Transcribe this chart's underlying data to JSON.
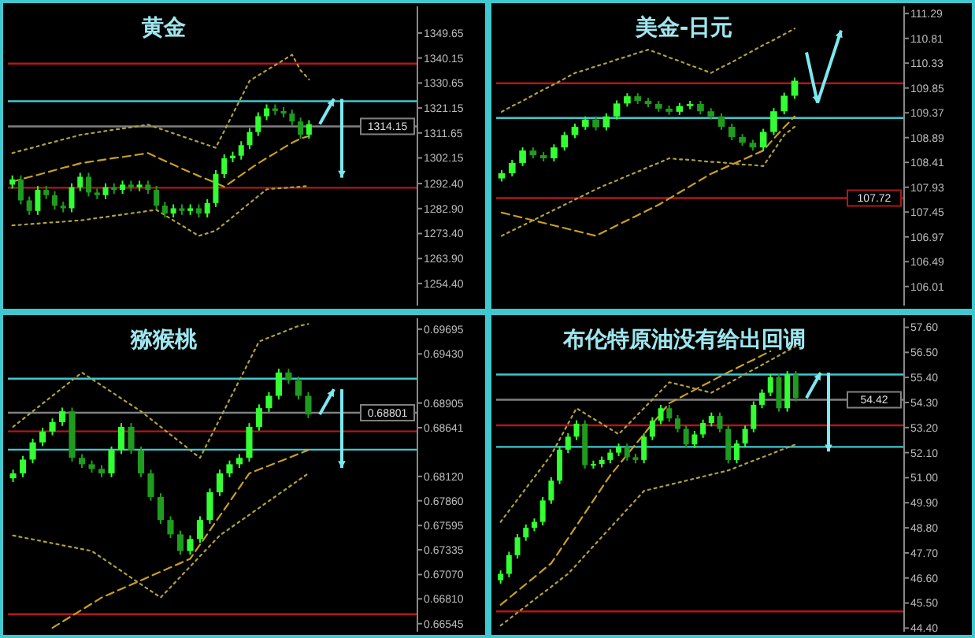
{
  "chart_data": [
    {
      "type": "candlestick",
      "title": "黄金",
      "colors": [
        "#33ff33",
        "#1f9b1f",
        "#1f9b1f",
        "#33ff33",
        "#1f9b1f",
        "#1f9b1f",
        "#1f9b1f",
        "#33ff33",
        "#33ff33",
        "#1f9b1f",
        "#1f9b1f",
        "#33ff33",
        "#1f9b1f",
        "#33ff33",
        "#1f9b1f",
        "#33ff33",
        "#1f9b1f",
        "#1f9b1f",
        "#1f9b1f",
        "#33ff33",
        "#1f9b1f",
        "#33ff33",
        "#1f9b1f",
        "#33ff33",
        "#33ff33",
        "#33ff33",
        "#33ff33",
        "#33ff33",
        "#33ff33",
        "#33ff33",
        "#33ff33",
        "#1f9b1f",
        "#1f9b1f",
        "#1f9b1f",
        "#1f9b1f",
        "#33ff33"
      ],
      "tick_labels": "y",
      "ylim": [
        1246,
        1359.8
      ],
      "yticks": [
        1349.65,
        1340.15,
        1330.65,
        1321.15,
        1311.65,
        1302.15,
        {
          "value": 1292.4,
          "label": "1292.40"
        },
        {
          "value": 1282.9,
          "label": "1282.90"
        },
        {
          "value": 1273.4,
          "label": "1273.40"
        },
        {
          "value": 1263.9,
          "label": "1263.90"
        },
        {
          "value": 1254.4,
          "label": "1254.40"
        }
      ],
      "categories": [
        null,
        null,
        null,
        null,
        null,
        null,
        null,
        null,
        null,
        null,
        null,
        null,
        null,
        null,
        null,
        null,
        null,
        null,
        null,
        null,
        null,
        null,
        null,
        null,
        null,
        null,
        null,
        null,
        null,
        null,
        null,
        null,
        null,
        null,
        null,
        null
      ],
      "ohlc": [
        [
          1292,
          1295.5,
          1290.5,
          1294
        ],
        [
          1294,
          1295.5,
          1284.5,
          1286
        ],
        [
          1286,
          1287.5,
          1280.5,
          1282
        ],
        [
          1282,
          1291.5,
          1280.5,
          1290
        ],
        [
          1290,
          1291.5,
          1286.5,
          1288
        ],
        [
          1288,
          1289.5,
          1282.5,
          1284
        ],
        [
          1284,
          1285.5,
          1281.5,
          1283
        ],
        [
          1283,
          1292.5,
          1281.5,
          1291
        ],
        [
          1291,
          1296.5,
          1289.5,
          1295
        ],
        [
          1295,
          1296.5,
          1287.5,
          1289
        ],
        [
          1289,
          1290.5,
          1286.5,
          1288
        ],
        [
          1288,
          1292.5,
          1286.5,
          1291
        ],
        [
          1291,
          1292.5,
          1288.5,
          1290
        ],
        [
          1290,
          1293.5,
          1288.5,
          1292
        ],
        [
          1292,
          1293.5,
          1289.5,
          1291
        ],
        [
          1291,
          1293.5,
          1289.5,
          1292
        ],
        [
          1292,
          1293.5,
          1288.5,
          1290
        ],
        [
          1290,
          1291.5,
          1282.5,
          1284
        ],
        [
          1284,
          1285.5,
          1279.5,
          1281
        ],
        [
          1281,
          1284.5,
          1279.5,
          1283
        ],
        [
          1283,
          1284.5,
          1280.5,
          1282
        ],
        [
          1282,
          1284.5,
          1280.5,
          1283
        ],
        [
          1283,
          1284.5,
          1279.5,
          1281
        ],
        [
          1281,
          1286.5,
          1279.5,
          1285
        ],
        [
          1285,
          1297.5,
          1283.5,
          1296
        ],
        [
          1296,
          1303.5,
          1294.5,
          1302
        ],
        [
          1302,
          1304.5,
          1300.5,
          1303
        ],
        [
          1303,
          1308.5,
          1301.5,
          1307
        ],
        [
          1307,
          1313.5,
          1305.5,
          1312
        ],
        [
          1312,
          1319.5,
          1310.5,
          1318
        ],
        [
          1318,
          1322.5,
          1316.5,
          1321
        ],
        [
          1321,
          1322.5,
          1318.5,
          1320
        ],
        [
          1320,
          1321.5,
          1317.5,
          1319
        ],
        [
          1319,
          1320.5,
          1314.5,
          1316
        ],
        [
          1316,
          1317.5,
          1309.5,
          1311
        ],
        [
          1311,
          1316.5,
          1309.5,
          1315
        ]
      ],
      "series": [
        {
          "type": "line",
          "color": "#c8a020",
          "line_style": "dashed",
          "values": [
            1293.1,
            1294.0,
            1294.9,
            1295.7,
            1296.6,
            1297.5,
            1298.4,
            1299.2,
            1300.1,
            1300.6,
            1301.1,
            1301.6,
            1302.1,
            1302.5,
            1303.0,
            1303.5,
            1304.0,
            1302.5,
            1301.0,
            1299.6,
            1298.1,
            1296.7,
            1295.3,
            1294.0,
            1292.6,
            1291.2,
            1293.4,
            1295.7,
            1297.9,
            1300.1,
            1302.1,
            1304.0,
            1306.0,
            1307.9,
            1309.5,
            1310.5
          ]
        },
        {
          "type": "line",
          "color": "#b0a040",
          "line_style": "dotted",
          "values": [
            1304.0,
            1304.9,
            1305.7,
            1306.6,
            1307.5,
            1308.3,
            1309.2,
            1310.0,
            1310.9,
            1311.4,
            1311.9,
            1312.4,
            1312.9,
            1313.3,
            1313.8,
            1314.3,
            1314.8,
            1313.7,
            1312.6,
            1311.5,
            1310.4,
            1309.3,
            1308.2,
            1307.1,
            1306.0,
            1312.4,
            1318.8,
            1325.1,
            1331.5,
            1333.5,
            1335.5,
            1337.4,
            1339.4,
            1341.4,
            1335.5,
            1332.0
          ]
        },
        {
          "type": "line",
          "color": "#b0a040",
          "line_style": "dotted",
          "values": [
            1276.5,
            1276.7,
            1277.0,
            1277.2,
            1277.5,
            1277.7,
            1277.9,
            1278.2,
            1278.4,
            1278.8,
            1279.3,
            1279.7,
            1280.2,
            1280.6,
            1281.1,
            1281.5,
            1282.0,
            1282.4,
            1280.4,
            1278.4,
            1276.5,
            1274.5,
            1272.5,
            1273.5,
            1274.5,
            1277.1,
            1279.7,
            1282.4,
            1285.0,
            1287.6,
            1290.2,
            1290.5,
            1290.7,
            1291.0,
            1291.2,
            1291.5
          ]
        }
      ],
      "ref_lines": [
        {
          "axis": "y",
          "value": 1338.0,
          "color": "#b01818"
        },
        {
          "axis": "y",
          "value": 1323.7,
          "color": "#40c8d0"
        },
        {
          "axis": "y",
          "value": 1314.15,
          "color": "#808080",
          "label": "1314.15"
        },
        {
          "axis": "y",
          "value": 1290.8,
          "color": "#b01818"
        }
      ]
    },
    {
      "type": "candlestick",
      "title": "美金-日元",
      "colors": [
        "#33ff33",
        "#33ff33",
        "#33ff33",
        "#1f9b1f",
        "#1f9b1f",
        "#33ff33",
        "#33ff33",
        "#33ff33",
        "#33ff33",
        "#1f9b1f",
        "#33ff33",
        "#33ff33",
        "#33ff33",
        "#1f9b1f",
        "#1f9b1f",
        "#1f9b1f",
        "#1f9b1f",
        "#33ff33",
        "#33ff33",
        "#1f9b1f",
        "#1f9b1f",
        "#1f9b1f",
        "#1f9b1f",
        "#1f9b1f",
        "#1f9b1f",
        "#33ff33",
        "#33ff33",
        "#33ff33",
        "#33ff33"
      ],
      "tick_labels": "y",
      "ylim": [
        105.64,
        111.43
      ],
      "yticks": [
        111.29,
        110.81,
        110.33,
        109.85,
        109.37,
        108.89,
        108.41,
        107.93,
        107.45,
        106.97,
        106.49,
        106.01
      ],
      "categories": [
        null,
        null,
        null,
        null,
        null,
        null,
        null,
        null,
        null,
        null,
        null,
        null,
        null,
        null,
        null,
        null,
        null,
        null,
        null,
        null,
        null,
        null,
        null,
        null,
        null,
        null,
        null,
        null,
        null
      ],
      "ohlc": [
        [
          108.1,
          108.26,
          108.04,
          108.2
        ],
        [
          108.2,
          108.46,
          108.14,
          108.4
        ],
        [
          108.4,
          108.7,
          108.34,
          108.64
        ],
        [
          108.64,
          108.7,
          108.49,
          108.55
        ],
        [
          108.55,
          108.61,
          108.43,
          108.49
        ],
        [
          108.49,
          108.76,
          108.43,
          108.7
        ],
        [
          108.7,
          109.0,
          108.64,
          108.94
        ],
        [
          108.94,
          109.16,
          108.88,
          109.1
        ],
        [
          109.1,
          109.3,
          109.04,
          109.24
        ],
        [
          109.24,
          109.3,
          109.03,
          109.09
        ],
        [
          109.09,
          109.36,
          109.03,
          109.3
        ],
        [
          109.3,
          109.61,
          109.24,
          109.55
        ],
        [
          109.55,
          109.75,
          109.49,
          109.69
        ],
        [
          109.69,
          109.75,
          109.54,
          109.6
        ],
        [
          109.6,
          109.66,
          109.48,
          109.54
        ],
        [
          109.54,
          109.6,
          109.39,
          109.45
        ],
        [
          109.45,
          109.51,
          109.33,
          109.39
        ],
        [
          109.39,
          109.56,
          109.33,
          109.5
        ],
        [
          109.5,
          109.6,
          109.44,
          109.54
        ],
        [
          109.54,
          109.6,
          109.34,
          109.4
        ],
        [
          109.4,
          109.46,
          109.24,
          109.3
        ],
        [
          109.3,
          109.36,
          109.04,
          109.1
        ],
        [
          109.1,
          109.16,
          108.84,
          108.9
        ],
        [
          108.9,
          108.96,
          108.73,
          108.79
        ],
        [
          108.79,
          108.85,
          108.64,
          108.7
        ],
        [
          108.7,
          109.06,
          108.64,
          109.0
        ],
        [
          109.0,
          109.46,
          108.94,
          109.4
        ],
        [
          109.4,
          109.76,
          109.34,
          109.7
        ],
        [
          109.7,
          110.05,
          109.64,
          109.99
        ]
      ],
      "series": [
        {
          "type": "line",
          "color": "#c8a020",
          "line_style": "dashed",
          "values": [
            107.44,
            107.39,
            107.34,
            107.29,
            107.24,
            107.19,
            107.14,
            107.09,
            107.04,
            106.99,
            107.09,
            107.19,
            107.29,
            107.39,
            107.49,
            107.59,
            107.71,
            107.83,
            107.95,
            108.07,
            108.19,
            108.28,
            108.37,
            108.46,
            108.55,
            108.64,
            108.87,
            109.09,
            109.3
          ]
        },
        {
          "type": "line",
          "color": "#b0a040",
          "line_style": "dotted",
          "values": [
            109.39,
            109.5,
            109.6,
            109.71,
            109.82,
            109.92,
            110.03,
            110.14,
            110.2,
            110.27,
            110.33,
            110.4,
            110.46,
            110.53,
            110.59,
            110.52,
            110.44,
            110.37,
            110.29,
            110.22,
            110.14,
            110.25,
            110.35,
            110.46,
            110.57,
            110.68,
            110.78,
            110.89,
            111.0
          ]
        },
        {
          "type": "line",
          "color": "#b0a040",
          "line_style": "dotted",
          "values": [
            106.99,
            107.09,
            107.19,
            107.29,
            107.39,
            107.49,
            107.59,
            107.69,
            107.79,
            107.89,
            107.98,
            108.06,
            108.15,
            108.23,
            108.32,
            108.4,
            108.49,
            108.47,
            108.46,
            108.44,
            108.42,
            108.41,
            108.39,
            108.37,
            108.36,
            108.34,
            108.64,
            108.94,
            109.1
          ]
        }
      ],
      "ref_lines": [
        {
          "axis": "y",
          "value": 109.94,
          "color": "#b01818"
        },
        {
          "axis": "y",
          "value": 109.27,
          "color": "#40c8d0"
        },
        {
          "axis": "y",
          "value": 107.72,
          "color": "#b01818",
          "label": "107.72"
        }
      ]
    },
    {
      "type": "candlestick",
      "title": "猕猴桃",
      "colors": [
        "#33ff33",
        "#33ff33",
        "#33ff33",
        "#33ff33",
        "#33ff33",
        "#33ff33",
        "#1f9b1f",
        "#1f9b1f",
        "#1f9b1f",
        "#1f9b1f",
        "#33ff33",
        "#33ff33",
        "#1f9b1f",
        "#1f9b1f",
        "#1f9b1f",
        "#1f9b1f",
        "#1f9b1f",
        "#1f9b1f",
        "#33ff33",
        "#33ff33",
        "#33ff33",
        "#33ff33",
        "#33ff33",
        "#33ff33",
        "#33ff33",
        "#33ff33",
        "#33ff33",
        "#33ff33",
        "#1f9b1f",
        "#1f9b1f",
        "#1f9b1f"
      ],
      "tick_labels": "y",
      "ylim": [
        0.66459,
        0.69812
      ],
      "yticks": [
        0.69695,
        {
          "value": 0.6943,
          "label": "0.69430"
        },
        0.68905,
        0.68641,
        {
          "value": 0.6812,
          "label": "0.68120"
        },
        {
          "value": 0.6786,
          "label": "0.67860"
        },
        0.67595,
        0.67335,
        {
          "value": 0.6707,
          "label": "0.67070"
        },
        {
          "value": 0.6681,
          "label": "0.66810"
        },
        0.66545
      ],
      "categories": [
        null,
        null,
        null,
        null,
        null,
        null,
        null,
        null,
        null,
        null,
        null,
        null,
        null,
        null,
        null,
        null,
        null,
        null,
        null,
        null,
        null,
        null,
        null,
        null,
        null,
        null,
        null,
        null,
        null,
        null,
        null
      ],
      "ohlc": [
        [
          0.681,
          0.68192,
          0.6806,
          0.68152
        ],
        [
          0.68152,
          0.6834,
          0.68112,
          0.683
        ],
        [
          0.683,
          0.68524,
          0.6826,
          0.68484
        ],
        [
          0.68484,
          0.6864,
          0.68444,
          0.686
        ],
        [
          0.686,
          0.6874,
          0.6856,
          0.687
        ],
        [
          0.687,
          0.68856,
          0.6866,
          0.68816
        ],
        [
          0.68816,
          0.68856,
          0.68278,
          0.68318
        ],
        [
          0.68318,
          0.68358,
          0.6821,
          0.6825
        ],
        [
          0.6825,
          0.6829,
          0.6816,
          0.682
        ],
        [
          0.682,
          0.6824,
          0.68112,
          0.68152
        ],
        [
          0.68152,
          0.6844,
          0.68112,
          0.684
        ],
        [
          0.684,
          0.6869,
          0.6836,
          0.6865
        ],
        [
          0.6865,
          0.6869,
          0.6836,
          0.684
        ],
        [
          0.684,
          0.6844,
          0.68112,
          0.68152
        ],
        [
          0.68152,
          0.68192,
          0.6786,
          0.679
        ],
        [
          0.679,
          0.6794,
          0.67614,
          0.67654
        ],
        [
          0.67654,
          0.67694,
          0.6746,
          0.675
        ],
        [
          0.675,
          0.6754,
          0.67282,
          0.67322
        ],
        [
          0.67322,
          0.6749,
          0.67282,
          0.6745
        ],
        [
          0.6745,
          0.67694,
          0.6741,
          0.67654
        ],
        [
          0.67654,
          0.6799,
          0.67614,
          0.6795
        ],
        [
          0.6795,
          0.68192,
          0.6791,
          0.68152
        ],
        [
          0.68152,
          0.6829,
          0.68112,
          0.6825
        ],
        [
          0.6825,
          0.68358,
          0.6821,
          0.68318
        ],
        [
          0.68318,
          0.6869,
          0.68278,
          0.6865
        ],
        [
          0.6865,
          0.6889,
          0.6861,
          0.6885
        ],
        [
          0.6885,
          0.69022,
          0.6881,
          0.68982
        ],
        [
          0.68982,
          0.69271,
          0.68942,
          0.69231
        ],
        [
          0.69231,
          0.69271,
          0.69108,
          0.69148
        ],
        [
          0.69148,
          0.69188,
          0.68942,
          0.68982
        ],
        [
          0.68982,
          0.69022,
          0.68743,
          0.68783
        ]
      ],
      "series": [
        {
          "type": "line",
          "color": "#c8a020",
          "line_style": "dashed",
          "values": [
            null,
            null,
            null,
            null,
            0.665,
            0.66565,
            0.6663,
            0.66694,
            0.66759,
            0.66824,
            0.6687,
            0.66916,
            0.66962,
            0.67008,
            0.67055,
            0.67101,
            0.67147,
            0.67193,
            0.67239,
            0.67391,
            0.67543,
            0.67696,
            0.67848,
            0.68,
            0.68152,
            0.68194,
            0.68235,
            0.68277,
            0.68318,
            0.6836,
            0.68401
          ]
        },
        {
          "type": "line",
          "color": "#b0a040",
          "line_style": "dotted",
          "values": [
            0.6865,
            0.68733,
            0.68816,
            0.68899,
            0.68982,
            0.69065,
            0.69148,
            0.69231,
            0.69162,
            0.69093,
            0.69024,
            0.68954,
            0.68885,
            0.68816,
            0.68733,
            0.6865,
            0.68567,
            0.68484,
            0.68401,
            0.68318,
            0.68526,
            0.68733,
            0.68941,
            0.69148,
            0.69356,
            0.69563,
            0.69605,
            0.69646,
            0.69688,
            0.69729,
            0.6975
          ]
        },
        {
          "type": "line",
          "color": "#b0a040",
          "line_style": "dotted",
          "values": [
            0.67488,
            0.67467,
            0.67447,
            0.67426,
            0.67405,
            0.67384,
            0.67364,
            0.67343,
            0.67322,
            0.67251,
            0.6718,
            0.67109,
            0.67037,
            0.66966,
            0.66895,
            0.66824,
            0.66935,
            0.67046,
            0.67156,
            0.67267,
            0.67378,
            0.67488,
            0.67562,
            0.67636,
            0.67709,
            0.67783,
            0.67857,
            0.67931,
            0.68005,
            0.68078,
            0.68152
          ]
        }
      ],
      "ref_lines": [
        {
          "axis": "y",
          "value": 0.69165,
          "color": "#40c8d0"
        },
        {
          "axis": "y",
          "value": 0.68801,
          "color": "#808080",
          "label": "0.68801"
        },
        {
          "axis": "y",
          "value": 0.68602,
          "color": "#b01818"
        },
        {
          "axis": "y",
          "value": 0.68406,
          "color": "#40c8d0"
        },
        {
          "axis": "y",
          "value": 0.66647,
          "color": "#b01818"
        }
      ]
    },
    {
      "type": "candlestick",
      "title": "布伦特原油没有给出回调",
      "colors": [
        "#33ff33",
        "#33ff33",
        "#33ff33",
        "#33ff33",
        "#33ff33",
        "#33ff33",
        "#33ff33",
        "#33ff33",
        "#33ff33",
        "#33ff33",
        "#1f9b1f",
        "#33ff33",
        "#33ff33",
        "#33ff33",
        "#33ff33",
        "#1f9b1f",
        "#1f9b1f",
        "#33ff33",
        "#33ff33",
        "#33ff33",
        "#1f9b1f",
        "#1f9b1f",
        "#1f9b1f",
        "#33ff33",
        "#33ff33",
        "#33ff33",
        "#1f9b1f",
        "#1f9b1f",
        "#33ff33",
        "#33ff33",
        "#33ff33",
        "#33ff33",
        "#33ff33",
        "#1f9b1f",
        "#33ff33",
        "#1f9b1f"
      ],
      "tick_labels": "y",
      "ylim": [
        44.24,
        58.0
      ],
      "yticks": [
        {
          "value": 57.6,
          "label": "57.60"
        },
        {
          "value": 56.5,
          "label": "56.50"
        },
        {
          "value": 55.4,
          "label": "55.40"
        },
        {
          "value": 54.3,
          "label": "54.30"
        },
        {
          "value": 53.2,
          "label": "53.20"
        },
        {
          "value": 52.1,
          "label": "52.10"
        },
        {
          "value": 51,
          "label": "51.00"
        },
        {
          "value": 49.9,
          "label": "49.90"
        },
        {
          "value": 48.8,
          "label": "48.80"
        },
        {
          "value": 47.7,
          "label": "47.70"
        },
        {
          "value": 46.6,
          "label": "46.60"
        },
        {
          "value": 45.5,
          "label": "45.50"
        },
        {
          "value": 44.4,
          "label": "44.40"
        }
      ],
      "categories": [
        null,
        null,
        null,
        null,
        null,
        null,
        null,
        null,
        null,
        null,
        null,
        null,
        null,
        null,
        null,
        null,
        null,
        null,
        null,
        null,
        null,
        null,
        null,
        null,
        null,
        null,
        null,
        null,
        null,
        null,
        null,
        null,
        null,
        null,
        null,
        null
      ],
      "ohlc": [
        [
          46.5,
          46.93,
          46.35,
          46.78
        ],
        [
          46.78,
          47.75,
          46.63,
          47.6
        ],
        [
          47.6,
          48.53,
          47.45,
          48.38
        ],
        [
          48.38,
          48.95,
          48.23,
          48.8
        ],
        [
          48.8,
          49.21,
          48.65,
          49.06
        ],
        [
          49.06,
          50.15,
          48.91,
          50.0
        ],
        [
          50.0,
          51.02,
          49.85,
          50.87
        ],
        [
          50.87,
          52.38,
          50.72,
          52.23
        ],
        [
          52.23,
          52.95,
          52.08,
          52.8
        ],
        [
          52.8,
          53.52,
          52.65,
          53.37
        ],
        [
          53.37,
          53.52,
          51.4,
          51.55
        ],
        [
          51.55,
          51.75,
          51.4,
          51.6
        ],
        [
          51.6,
          51.93,
          51.45,
          51.78
        ],
        [
          51.78,
          52.25,
          51.63,
          52.1
        ],
        [
          52.1,
          52.5,
          51.95,
          52.35
        ],
        [
          52.35,
          52.5,
          51.75,
          51.9
        ],
        [
          51.9,
          52.05,
          51.63,
          51.78
        ],
        [
          51.78,
          52.95,
          51.63,
          52.8
        ],
        [
          52.8,
          53.65,
          52.65,
          53.5
        ],
        [
          53.5,
          54.2,
          53.35,
          54.05
        ],
        [
          54.05,
          54.2,
          53.45,
          53.6
        ],
        [
          53.6,
          53.75,
          52.99,
          53.14
        ],
        [
          53.14,
          53.29,
          52.31,
          52.46
        ],
        [
          52.46,
          53.05,
          52.31,
          52.9
        ],
        [
          52.9,
          53.55,
          52.75,
          53.4
        ],
        [
          53.4,
          53.86,
          53.25,
          53.71
        ],
        [
          53.71,
          53.86,
          52.99,
          53.14
        ],
        [
          53.14,
          53.29,
          51.63,
          51.78
        ],
        [
          51.78,
          52.65,
          51.63,
          52.5
        ],
        [
          52.5,
          53.29,
          52.35,
          53.14
        ],
        [
          53.14,
          54.35,
          52.99,
          54.2
        ],
        [
          54.2,
          54.88,
          54.05,
          54.73
        ],
        [
          54.73,
          55.56,
          54.58,
          55.41
        ],
        [
          55.41,
          55.56,
          53.9,
          54.05
        ],
        [
          54.05,
          55.68,
          53.9,
          55.53
        ],
        [
          55.53,
          55.68,
          54.35,
          54.5
        ]
      ],
      "series": [
        {
          "type": "line",
          "color": "#c8a020",
          "line_style": "dashed",
          "values": [
            45.42,
            45.72,
            46.03,
            46.33,
            46.63,
            46.94,
            47.24,
            47.79,
            48.34,
            48.89,
            49.45,
            50.0,
            50.55,
            51.1,
            51.55,
            52.01,
            52.46,
            52.91,
            53.36,
            53.82,
            54.27,
            54.46,
            54.66,
            54.85,
            55.05,
            55.24,
            55.44,
            55.63,
            55.81,
            56.0,
            56.18,
            56.37,
            56.55,
            null,
            null,
            null
          ]
        },
        {
          "type": "line",
          "color": "#b0a040",
          "line_style": "dotted",
          "values": [
            49.06,
            49.55,
            50.04,
            50.53,
            51.02,
            51.51,
            52.0,
            52.68,
            53.37,
            54.05,
            53.82,
            53.59,
            53.37,
            53.14,
            52.91,
            53.29,
            53.67,
            54.05,
            54.43,
            54.81,
            55.19,
            55.1,
            55.01,
            54.91,
            54.82,
            54.73,
            54.93,
            55.14,
            55.34,
            55.55,
            55.75,
            55.95,
            56.16,
            56.36,
            56.57,
            56.77
          ]
        },
        {
          "type": "line",
          "color": "#b0a040",
          "line_style": "dotted",
          "values": [
            44.51,
            44.79,
            45.08,
            45.36,
            45.65,
            45.93,
            46.21,
            46.5,
            46.78,
            47.18,
            47.59,
            47.99,
            48.4,
            48.8,
            49.2,
            49.61,
            50.01,
            50.42,
            50.51,
            50.6,
            50.69,
            50.78,
            50.87,
            50.96,
            51.05,
            51.14,
            51.23,
            51.32,
            51.46,
            51.61,
            51.75,
            51.89,
            52.03,
            52.18,
            52.32,
            52.46
          ]
        }
      ],
      "ref_lines": [
        {
          "axis": "y",
          "value": 55.53,
          "color": "#40c8d0"
        },
        {
          "axis": "y",
          "value": 54.42,
          "color": "#808080",
          "label": "54.42"
        },
        {
          "axis": "y",
          "value": 53.3,
          "color": "#b01818"
        },
        {
          "axis": "y",
          "value": 52.35,
          "color": "#40c8d0"
        },
        {
          "axis": "y",
          "value": 45.13,
          "color": "#b01818"
        }
      ]
    }
  ]
}
